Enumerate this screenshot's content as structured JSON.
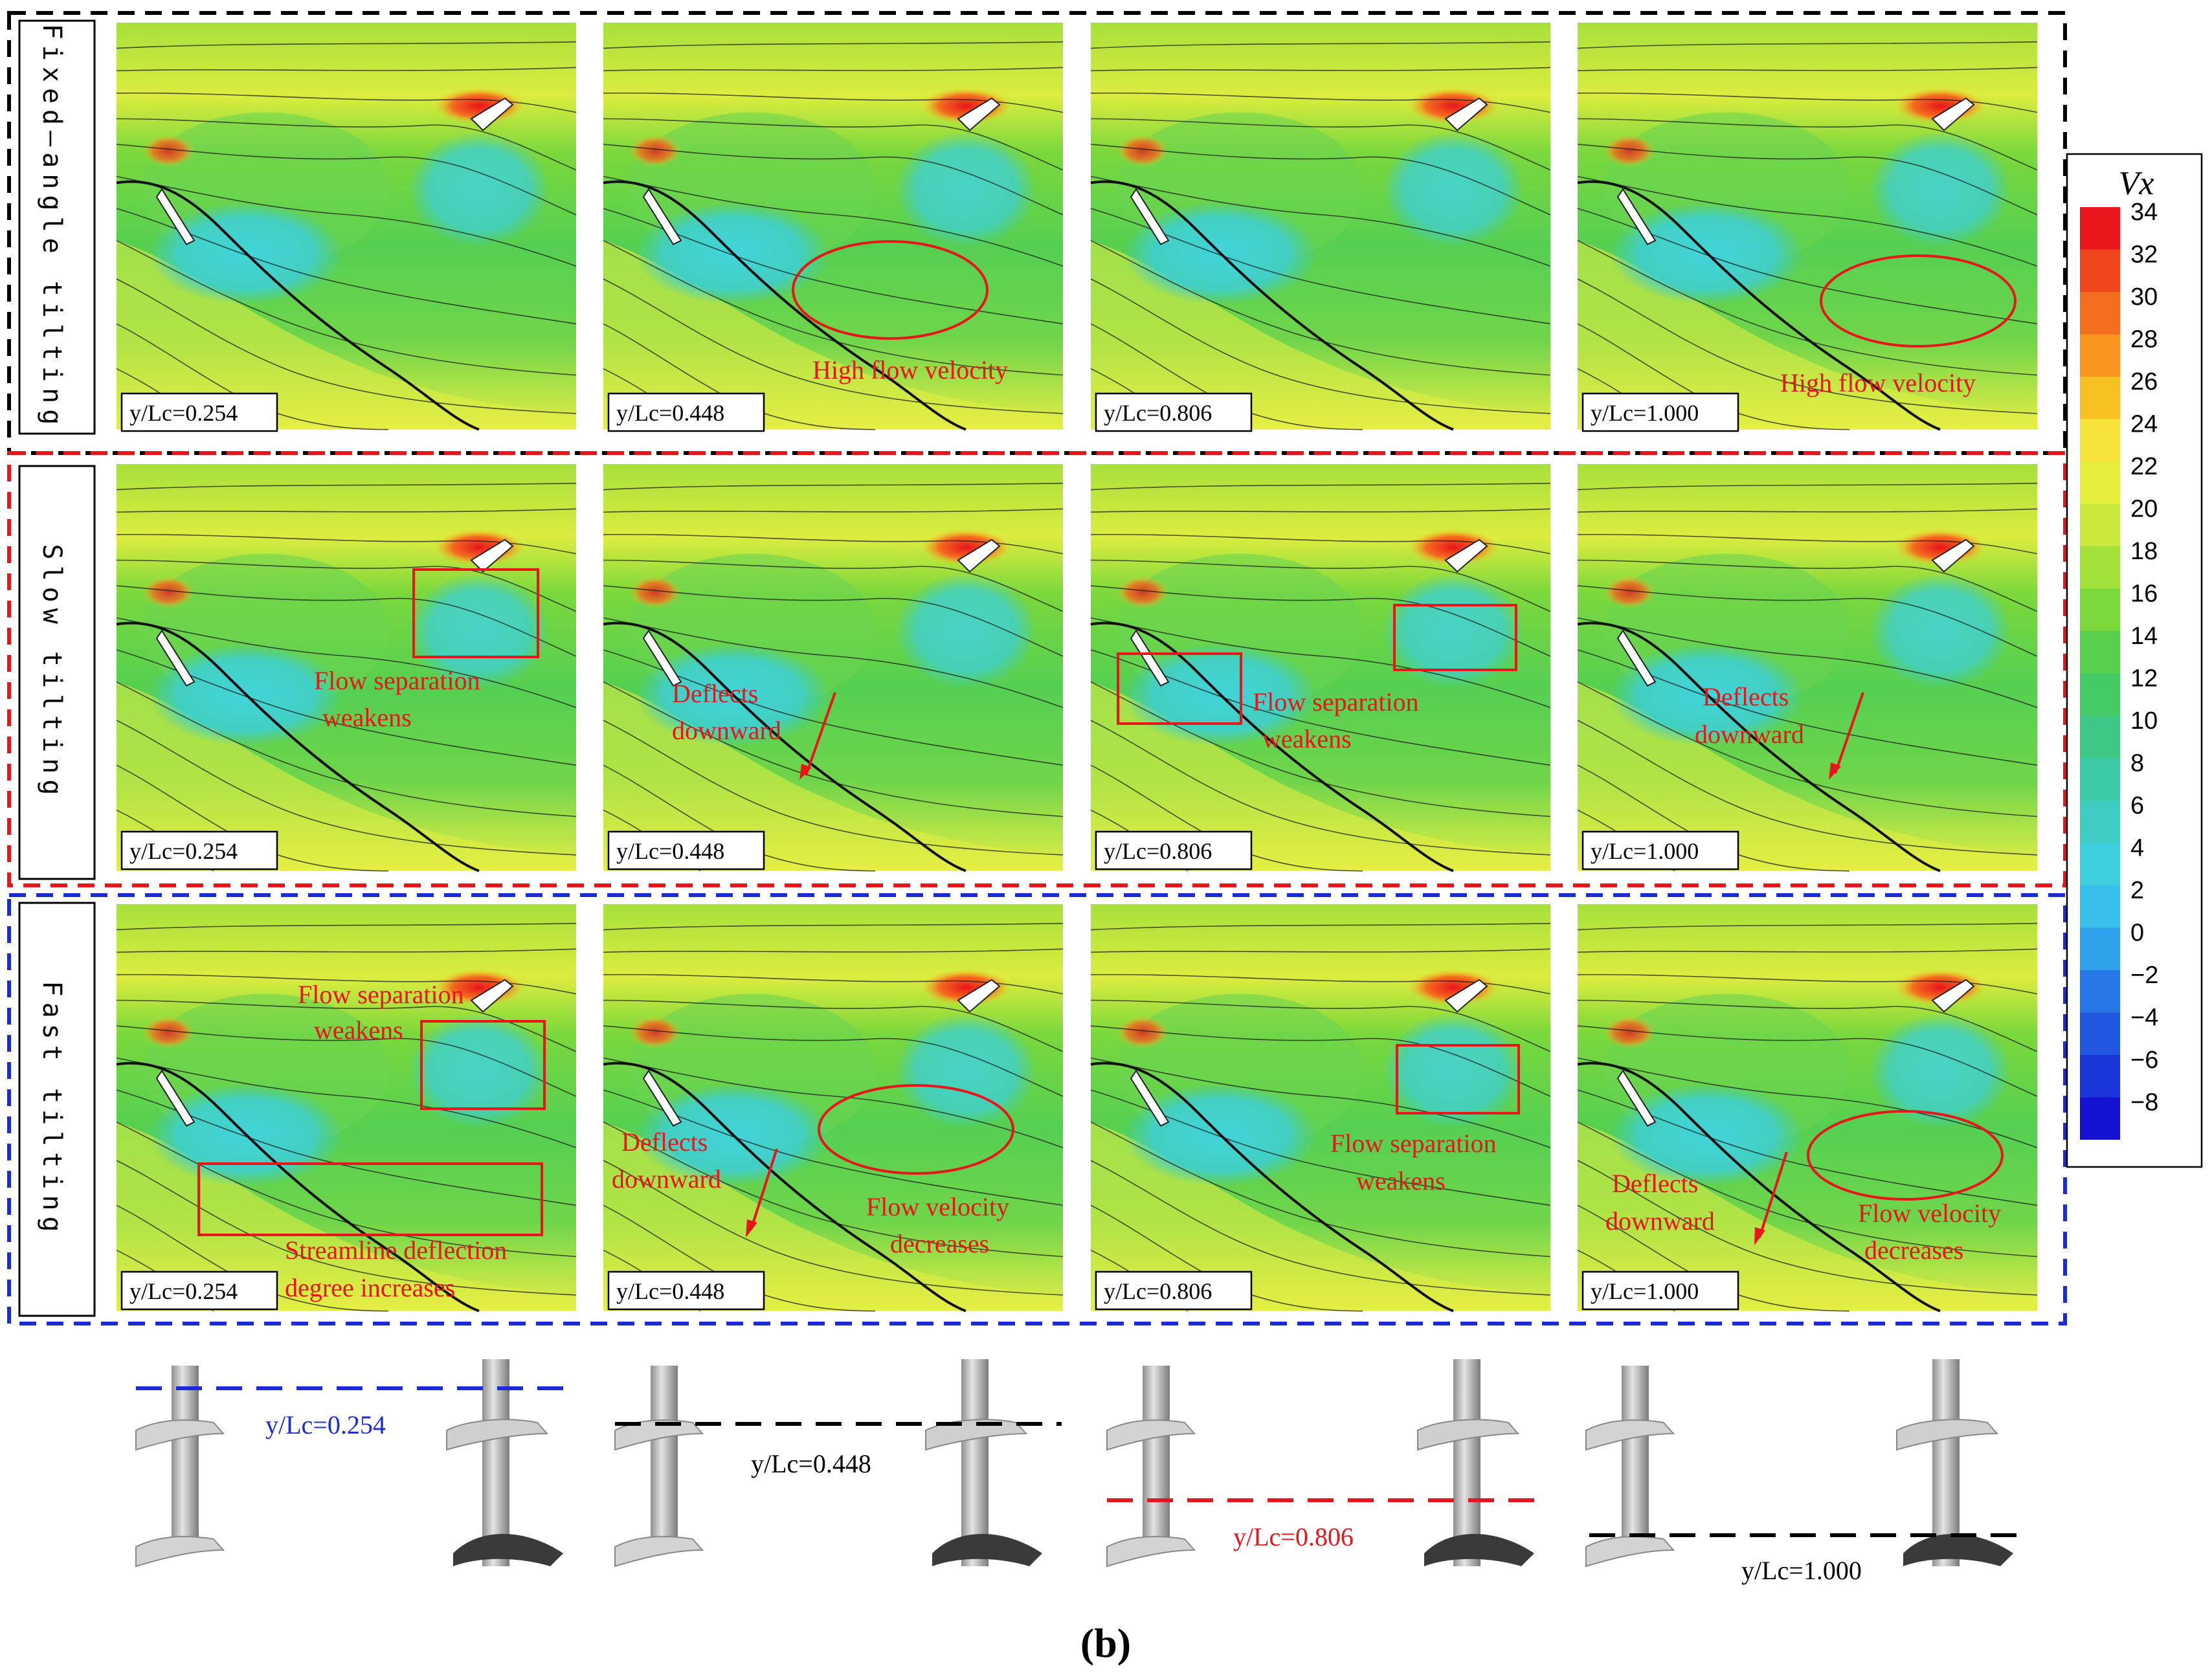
{
  "rows": [
    {
      "label": "Fixed–angle tilting",
      "frame_color": "#000000"
    },
    {
      "label": "Slow tilting",
      "frame_color": "#e8161b"
    },
    {
      "label": "Fast tilting",
      "frame_color": "#1a2bd8"
    }
  ],
  "position_labels": [
    "y/Lc=0.254",
    "y/Lc=0.448",
    "y/Lc=0.806",
    "y/Lc=1.000"
  ],
  "annotations": {
    "high_flow_velocity": "High flow velocity",
    "flow_separation_l1": "Flow separation",
    "flow_separation_l2": "weakens",
    "deflects_l1": "Deflects",
    "deflects_l2": "downward",
    "velocity_decreases_l1": "Flow velocity",
    "velocity_decreases_l2": "decreases",
    "streamline_l1": "Streamline deflection",
    "streamline_l2": "degree increases"
  },
  "colorbar": {
    "title": "Vx",
    "ticks": [
      "34",
      "32",
      "30",
      "28",
      "26",
      "24",
      "22",
      "20",
      "18",
      "16",
      "14",
      "12",
      "10",
      "8",
      "6",
      "4",
      "2",
      "0",
      "−2",
      "−4",
      "−6",
      "−8"
    ],
    "colors": [
      "#e8161b",
      "#f0441c",
      "#f46d1e",
      "#f7951f",
      "#f9c021",
      "#f7e33a",
      "#e7ee3c",
      "#c9ea3c",
      "#a3e23b",
      "#7ad83c",
      "#57d04b",
      "#44cb66",
      "#3ec787",
      "#3ec9a6",
      "#3fcdc3",
      "#3fd0e0",
      "#37bfee",
      "#2ea0ec",
      "#2678e6",
      "#1f55df",
      "#1a36d8",
      "#1411d4"
    ]
  },
  "slice_labels": [
    {
      "text": "y/Lc=0.254",
      "color": "#1a2bd8"
    },
    {
      "text": "y/Lc=0.448",
      "color": "#000000"
    },
    {
      "text": "y/Lc=0.806",
      "color": "#e8161b"
    },
    {
      "text": "y/Lc=1.000",
      "color": "#000000"
    }
  ],
  "caption": "(b)"
}
